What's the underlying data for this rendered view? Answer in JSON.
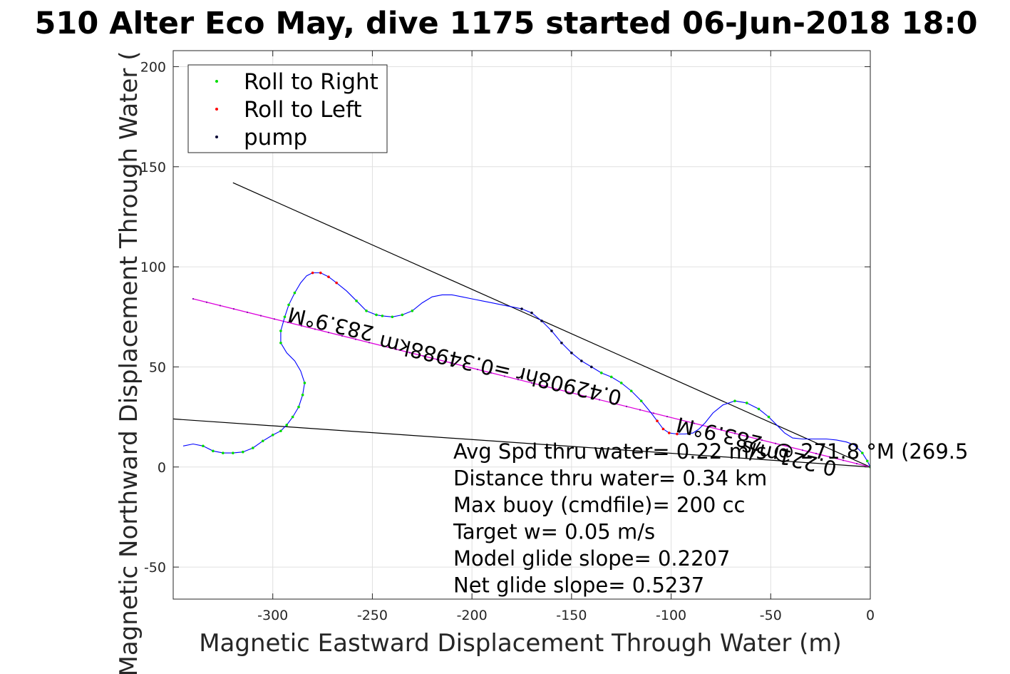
{
  "chart_data": {
    "type": "line",
    "title": "510 Alter Eco May, dive 1175 started 06-Jun-2018 18:0",
    "xlabel": "Magnetic Eastward Displacement Through Water (m)",
    "ylabel": "Magnetic Northward Displacement Through Water (",
    "xlim": [
      -350,
      0
    ],
    "ylim": [
      -66,
      208
    ],
    "xticks": [
      -300,
      -250,
      -200,
      -150,
      -100,
      -50,
      0
    ],
    "yticks": [
      -50,
      0,
      50,
      100,
      150,
      200
    ],
    "grid": true,
    "legend": {
      "placement": "top-left",
      "entries": [
        {
          "label": "Roll to Right",
          "color": "#00dd00"
        },
        {
          "label": "Roll to Left",
          "color": "#ff0000"
        },
        {
          "label": "pump",
          "color": "#000033"
        }
      ]
    },
    "track": {
      "color": "#0000ff",
      "points": [
        [
          -345,
          10.5
        ],
        [
          -340,
          11.5
        ],
        [
          -335,
          10.5
        ],
        [
          -330,
          8
        ],
        [
          -325,
          7
        ],
        [
          -320,
          7
        ],
        [
          -315,
          7.5
        ],
        [
          -310,
          9.5
        ],
        [
          -305,
          13
        ],
        [
          -300,
          16
        ],
        [
          -296,
          18
        ],
        [
          -293,
          21
        ],
        [
          -290,
          25
        ],
        [
          -287,
          30
        ],
        [
          -285,
          36
        ],
        [
          -284,
          42
        ],
        [
          -286,
          48
        ],
        [
          -289,
          53
        ],
        [
          -293,
          57
        ],
        [
          -296,
          62
        ],
        [
          -296,
          68
        ],
        [
          -294,
          75
        ],
        [
          -292,
          81
        ],
        [
          -289,
          87
        ],
        [
          -286,
          92
        ],
        [
          -283,
          95.5
        ],
        [
          -280,
          97
        ],
        [
          -276,
          97
        ],
        [
          -272,
          95
        ],
        [
          -268,
          92
        ],
        [
          -263,
          88
        ],
        [
          -258,
          83
        ],
        [
          -253,
          78
        ],
        [
          -248,
          76
        ],
        [
          -245,
          75.5
        ],
        [
          -240,
          75
        ],
        [
          -235,
          76
        ],
        [
          -230,
          78
        ],
        [
          -225,
          82
        ],
        [
          -220,
          85
        ],
        [
          -215,
          86
        ],
        [
          -210,
          86
        ],
        [
          -205,
          85
        ],
        [
          -200,
          84
        ],
        [
          -195,
          83
        ],
        [
          -190,
          82
        ],
        [
          -185,
          81
        ],
        [
          -180,
          80
        ],
        [
          -175,
          79
        ],
        [
          -170,
          77
        ],
        [
          -165,
          73
        ],
        [
          -160,
          68
        ],
        [
          -155,
          62
        ],
        [
          -150,
          57
        ],
        [
          -145,
          53
        ],
        [
          -140,
          50
        ],
        [
          -135,
          47
        ],
        [
          -130,
          45
        ],
        [
          -125,
          42
        ],
        [
          -120,
          38
        ],
        [
          -115,
          33
        ],
        [
          -110,
          27
        ],
        [
          -107,
          23
        ],
        [
          -104,
          19
        ],
        [
          -101,
          17
        ],
        [
          -97,
          16.5
        ],
        [
          -93,
          16.5
        ],
        [
          -89,
          17
        ],
        [
          -86,
          19
        ],
        [
          -83,
          22
        ],
        [
          -79,
          27
        ],
        [
          -74,
          31
        ],
        [
          -68,
          33
        ],
        [
          -62,
          32
        ],
        [
          -56,
          29
        ],
        [
          -51,
          25
        ],
        [
          -47,
          21
        ],
        [
          -43,
          17
        ],
        [
          -39,
          14.5
        ],
        [
          -34,
          14
        ],
        [
          -28,
          14
        ],
        [
          -22,
          14
        ],
        [
          -17,
          13.5
        ],
        [
          -12,
          12.5
        ],
        [
          -8,
          11
        ],
        [
          -4,
          7
        ],
        [
          -1.5,
          3
        ],
        [
          0,
          0
        ]
      ]
    },
    "segments": {
      "upper_black": {
        "color": "#000000",
        "from": [
          -320,
          142
        ],
        "to": [
          0,
          0
        ]
      },
      "lower_black": {
        "color": "#000000",
        "from": [
          -350,
          24
        ],
        "to": [
          0,
          0
        ]
      },
      "magenta": {
        "color": "#dd00dd",
        "from": [
          -340,
          84
        ],
        "to": [
          0,
          0
        ]
      }
    },
    "labels": {
      "heading_far": {
        "text": "283.9°M",
        "at": [
          -270,
          75
        ],
        "rotate": 193.2
      },
      "distance": {
        "text": "0.42908hr =0.34988km",
        "at": [
          -185,
          52
        ],
        "rotate": 193.2
      },
      "heading_near": {
        "text": "283.9°M",
        "at": [
          -75,
          20
        ],
        "rotate": 193.2
      },
      "speed": {
        "text": "0.221m/s",
        "at": [
          -40,
          8
        ],
        "rotate": 193.2
      }
    },
    "stats": [
      "Avg Spd thru water=  0.22 m/s @ 271.8 °M (269.5",
      "Distance thru water=  0.34 km",
      "Max buoy (cmdfile)= 200 cc",
      "Target w= 0.05 m/s",
      "Model glide slope= 0.2207",
      "Net glide slope= 0.5237"
    ],
    "marker_colors": {
      "right": "#00dd00",
      "left": "#ff0000",
      "pump": "#000033"
    }
  }
}
